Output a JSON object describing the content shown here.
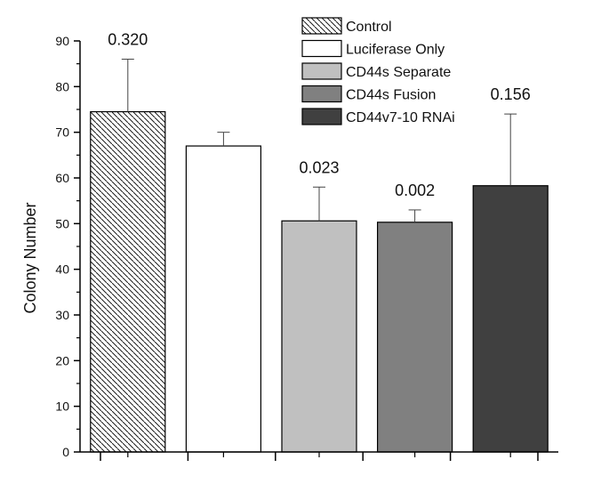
{
  "chart_data": {
    "type": "bar",
    "title": "",
    "xlabel": "",
    "ylabel": "Colony Number",
    "ylim": [
      0,
      90
    ],
    "yticks": [
      0,
      10,
      20,
      30,
      40,
      50,
      60,
      70,
      80,
      90
    ],
    "categories": [
      "Control",
      "Luciferase Only",
      "CD44s Separate",
      "CD44s Fusion",
      "CD44v7-10 RNAi"
    ],
    "values": [
      74.5,
      67,
      50.6,
      50.3,
      58.3
    ],
    "error_upper": [
      86,
      70,
      58,
      53,
      74
    ],
    "p_values": [
      "0.320",
      "",
      "0.023",
      "0.002",
      "0.156"
    ],
    "fills": [
      "hatch",
      "#ffffff",
      "#c0c0c0",
      "#808080",
      "#404040"
    ],
    "grid": false,
    "legend_position": "top-right"
  }
}
